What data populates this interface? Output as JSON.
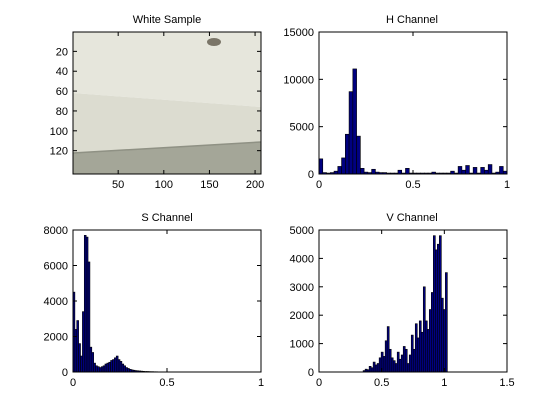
{
  "colors": {
    "bar_fill": "#000080",
    "bar_edge": "#000000",
    "axis": "#000000",
    "background": "#ffffff"
  },
  "chart_data": [
    {
      "type": "image",
      "title": "White Sample",
      "xlabel": "",
      "ylabel": "",
      "xlim": [
        0.5,
        206.5
      ],
      "ylim": [
        143.5,
        0.5
      ],
      "xticks": [
        50,
        100,
        150,
        200
      ],
      "yticks": [
        20,
        40,
        60,
        80,
        100,
        120
      ],
      "image_content": {
        "regions": [
          {
            "name": "upper-surface",
            "rows": [
              1,
              58
            ],
            "color": "#e6e6dc"
          },
          {
            "name": "front-face",
            "rows": [
              58,
              112
            ],
            "color": "#dcdcd0"
          },
          {
            "name": "shadow-strip",
            "rows": [
              112,
              143
            ],
            "color": "#a4a698"
          }
        ],
        "object": {
          "name": "small-debris",
          "x": 145,
          "y": 12,
          "color": "#7a7568"
        }
      }
    },
    {
      "type": "bar",
      "title": "H Channel",
      "xlabel": "",
      "ylabel": "",
      "xlim": [
        0,
        1
      ],
      "ylim": [
        0,
        15000
      ],
      "xticks": [
        0,
        0.5,
        1
      ],
      "yticks": [
        0,
        5000,
        10000,
        15000
      ],
      "bin_width": 0.02,
      "x": [
        0.0,
        0.02,
        0.04,
        0.06,
        0.08,
        0.1,
        0.12,
        0.14,
        0.16,
        0.18,
        0.2,
        0.22,
        0.24,
        0.26,
        0.28,
        0.3,
        0.32,
        0.34,
        0.36,
        0.38,
        0.4,
        0.42,
        0.44,
        0.46,
        0.48,
        0.5,
        0.52,
        0.54,
        0.56,
        0.58,
        0.6,
        0.62,
        0.64,
        0.66,
        0.68,
        0.7,
        0.72,
        0.74,
        0.76,
        0.78,
        0.8,
        0.82,
        0.84,
        0.86,
        0.88,
        0.9,
        0.92,
        0.94,
        0.96,
        0.98
      ],
      "values": [
        1600,
        150,
        100,
        150,
        300,
        800,
        1700,
        4200,
        8700,
        11100,
        4000,
        600,
        200,
        150,
        500,
        200,
        150,
        150,
        100,
        100,
        100,
        400,
        100,
        600,
        100,
        100,
        100,
        100,
        100,
        100,
        200,
        100,
        100,
        100,
        100,
        300,
        100,
        800,
        400,
        900,
        100,
        700,
        100,
        700,
        400,
        1000,
        100,
        200,
        800,
        300
      ]
    },
    {
      "type": "bar",
      "title": "S Channel",
      "xlabel": "",
      "ylabel": "",
      "xlim": [
        0,
        1
      ],
      "ylim": [
        0,
        8000
      ],
      "xticks": [
        0,
        0.5,
        1
      ],
      "yticks": [
        0,
        2000,
        4000,
        6000,
        8000
      ],
      "bin_width": 0.01,
      "x": [
        0.0,
        0.01,
        0.02,
        0.03,
        0.04,
        0.05,
        0.06,
        0.07,
        0.08,
        0.09,
        0.1,
        0.11,
        0.12,
        0.13,
        0.14,
        0.15,
        0.16,
        0.17,
        0.18,
        0.19,
        0.2,
        0.21,
        0.22,
        0.23,
        0.24,
        0.25,
        0.26,
        0.27,
        0.28,
        0.29,
        0.3,
        0.31,
        0.32,
        0.33,
        0.34,
        0.35,
        0.36,
        0.37,
        0.38,
        0.39,
        0.4,
        0.41,
        0.42,
        0.43,
        0.44,
        0.45,
        0.46,
        0.47,
        0.48,
        0.49
      ],
      "values": [
        4500,
        2400,
        2900,
        1600,
        900,
        3400,
        7700,
        7600,
        6200,
        1400,
        1100,
        500,
        350,
        300,
        250,
        300,
        350,
        450,
        500,
        550,
        650,
        700,
        800,
        900,
        700,
        600,
        450,
        350,
        250,
        200,
        150,
        120,
        100,
        80,
        70,
        60,
        50,
        40,
        30,
        30,
        25,
        20,
        20,
        15,
        15,
        10,
        10,
        10,
        10,
        10
      ]
    },
    {
      "type": "bar",
      "title": "V Channel",
      "xlabel": "",
      "ylabel": "",
      "xlim": [
        0,
        1.5
      ],
      "ylim": [
        0,
        5000
      ],
      "xticks": [
        0,
        0.5,
        1,
        1.5
      ],
      "yticks": [
        0,
        1000,
        2000,
        3000,
        4000,
        5000
      ],
      "bin_width": 0.016,
      "x": [
        0.352,
        0.368,
        0.384,
        0.4,
        0.416,
        0.432,
        0.448,
        0.464,
        0.48,
        0.496,
        0.512,
        0.528,
        0.544,
        0.56,
        0.576,
        0.592,
        0.608,
        0.624,
        0.64,
        0.656,
        0.672,
        0.688,
        0.704,
        0.72,
        0.736,
        0.752,
        0.768,
        0.784,
        0.8,
        0.816,
        0.832,
        0.848,
        0.864,
        0.88,
        0.896,
        0.912,
        0.928,
        0.944,
        0.96,
        0.976,
        0.992,
        1.008
      ],
      "values": [
        50,
        100,
        80,
        200,
        150,
        350,
        250,
        300,
        500,
        700,
        550,
        1100,
        1600,
        800,
        500,
        400,
        300,
        700,
        450,
        600,
        900,
        800,
        300,
        600,
        1300,
        800,
        1700,
        1200,
        1800,
        1400,
        3000,
        1800,
        1500,
        2200,
        2800,
        4800,
        4300,
        4500,
        4800,
        2600,
        2200,
        3500
      ]
    }
  ]
}
